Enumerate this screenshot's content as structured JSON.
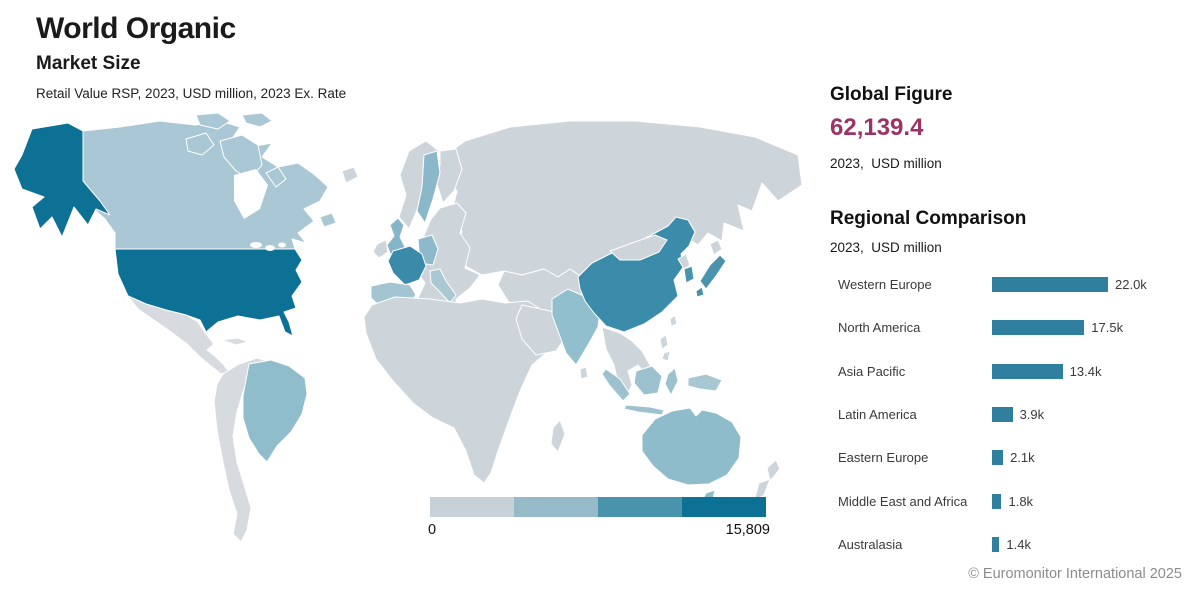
{
  "header": {
    "title": "World Organic",
    "subtitle": "Market Size",
    "metric_line": "Retail Value RSP, 2023, USD million, 2023 Ex. Rate"
  },
  "global_figure": {
    "heading": "Global Figure",
    "value": "62,139.4",
    "value_color": "#9c3265",
    "caption": "2023,  USD million"
  },
  "regional": {
    "heading": "Regional Comparison",
    "caption": "2023,  USD million",
    "bar_color": "#317f9e",
    "rows": [
      {
        "label": "Western Europe",
        "value_k": 22.0,
        "display": "22.0k"
      },
      {
        "label": "North America",
        "value_k": 17.5,
        "display": "17.5k"
      },
      {
        "label": "Asia Pacific",
        "value_k": 13.4,
        "display": "13.4k"
      },
      {
        "label": "Latin America",
        "value_k": 3.9,
        "display": "3.9k"
      },
      {
        "label": "Eastern Europe",
        "value_k": 2.1,
        "display": "2.1k"
      },
      {
        "label": "Middle East and Africa",
        "value_k": 1.8,
        "display": "1.8k"
      },
      {
        "label": "Australasia",
        "value_k": 1.4,
        "display": "1.4k"
      }
    ]
  },
  "map": {
    "legend": {
      "min_label": "0",
      "max_label": "15,809",
      "colors": [
        "#c9d1d8",
        "#96bac8",
        "#4a93ad",
        "#0d7195"
      ]
    },
    "base_land_color": "#cdd4da",
    "country_fills": {
      "united-states": "#0d7195",
      "alaska": "#0d7195",
      "canada": "#a9c7d4",
      "brazil": "#8fbdcc",
      "australia": "#8fbccb",
      "tasmania": "#8fbccb",
      "india": "#92bfcd",
      "sweden": "#8ab7c9",
      "united-kingdom": "#85b5c8",
      "germany": "#8cb9cb",
      "spain": "#a2c5d1",
      "italy": "#a8c8d4",
      "france": "#3a8aa9",
      "china": "#3b8cab",
      "south-korea": "#4a93ad",
      "japan": "#4a93ad",
      "indonesia": "#9cc2cf",
      "new-guinea": "#a5c8d3"
    }
  },
  "footer": {
    "copyright": "© Euromonitor International 2025"
  },
  "chart_data": [
    {
      "type": "heatmap",
      "subtype": "choropleth-world-map",
      "title": "World Organic Market Size",
      "metric": "Retail Value RSP, 2023, USD million, 2023 Ex. Rate",
      "global_total": 62139.4,
      "color_scale": {
        "min": 0,
        "max": 15809,
        "min_label": "0",
        "max_label": "15,809",
        "colors": [
          "#c9d1d8",
          "#96bac8",
          "#4a93ad",
          "#0d7195"
        ]
      },
      "highlighted_countries": [
        {
          "name": "United States",
          "bucket": 4
        },
        {
          "name": "Canada",
          "bucket": 2
        },
        {
          "name": "Brazil",
          "bucket": 2
        },
        {
          "name": "United Kingdom",
          "bucket": 2
        },
        {
          "name": "France",
          "bucket": 3
        },
        {
          "name": "Germany",
          "bucket": 2
        },
        {
          "name": "Spain",
          "bucket": 2
        },
        {
          "name": "Italy",
          "bucket": 2
        },
        {
          "name": "Sweden",
          "bucket": 2
        },
        {
          "name": "China",
          "bucket": 3
        },
        {
          "name": "India",
          "bucket": 2
        },
        {
          "name": "Japan",
          "bucket": 3
        },
        {
          "name": "South Korea",
          "bucket": 3
        },
        {
          "name": "Indonesia",
          "bucket": 2
        },
        {
          "name": "Australia",
          "bucket": 2
        }
      ]
    },
    {
      "type": "bar",
      "orientation": "horizontal",
      "title": "Regional Comparison",
      "subtitle": "2023, USD million",
      "categories": [
        "Western Europe",
        "North America",
        "Asia Pacific",
        "Latin America",
        "Eastern Europe",
        "Middle East and Africa",
        "Australasia"
      ],
      "values": [
        22000,
        17500,
        13400,
        3900,
        2100,
        1800,
        1400
      ],
      "value_labels": [
        "22.0k",
        "17.5k",
        "13.4k",
        "3.9k",
        "2.1k",
        "1.8k",
        "1.4k"
      ],
      "xlim": [
        0,
        24000
      ],
      "grid": false,
      "legend_position": "none"
    }
  ]
}
